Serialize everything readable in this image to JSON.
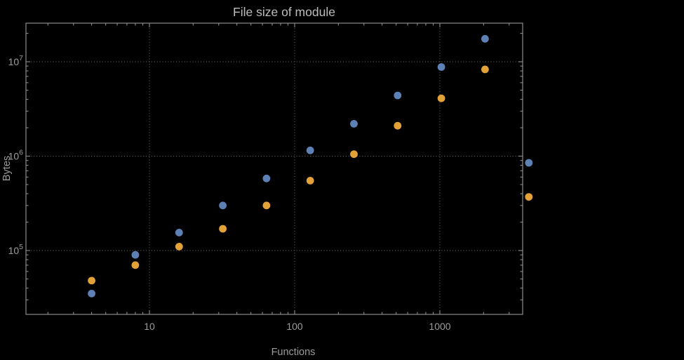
{
  "title": "File size of module",
  "colors": {
    "background": "#000000",
    "frame": "#8c8c8c",
    "grid": "#5e5e5e",
    "title_text": "#bcbcbc",
    "label_text": "#9d9d9d",
    "series1": "#5e81b5",
    "series2": "#e3a237"
  },
  "chart_data": {
    "type": "scatter",
    "title": "File size of module",
    "xlabel": "Functions",
    "ylabel": "Bytes",
    "x_scale": "log",
    "y_scale": "log",
    "grid": "dotted lines at decade ticks",
    "legend": false,
    "x_ticks": [
      {
        "value": 10,
        "label": "10"
      },
      {
        "value": 100,
        "label": "100"
      },
      {
        "value": 1000,
        "label": "1000"
      }
    ],
    "y_ticks": [
      {
        "base": "10",
        "exponent": 5
      },
      {
        "base": "10",
        "exponent": 6
      },
      {
        "base": "10",
        "exponent": 7
      }
    ],
    "x": [
      4,
      8,
      16,
      32,
      64,
      128,
      256,
      512,
      1024,
      2048,
      4096
    ],
    "series": [
      {
        "name": "series-1-blue",
        "color": "#5e81b5",
        "values": [
          35000,
          90000,
          155000,
          300000,
          580000,
          1150000,
          2200000,
          4400000,
          8800000,
          17500000,
          850000
        ]
      },
      {
        "name": "series-2-orange",
        "color": "#e3a237",
        "values": [
          48000,
          70000,
          110000,
          170000,
          300000,
          550000,
          1050000,
          2100000,
          4100000,
          8300000,
          370000
        ]
      }
    ],
    "note_last_pair_outside_frame": true
  }
}
